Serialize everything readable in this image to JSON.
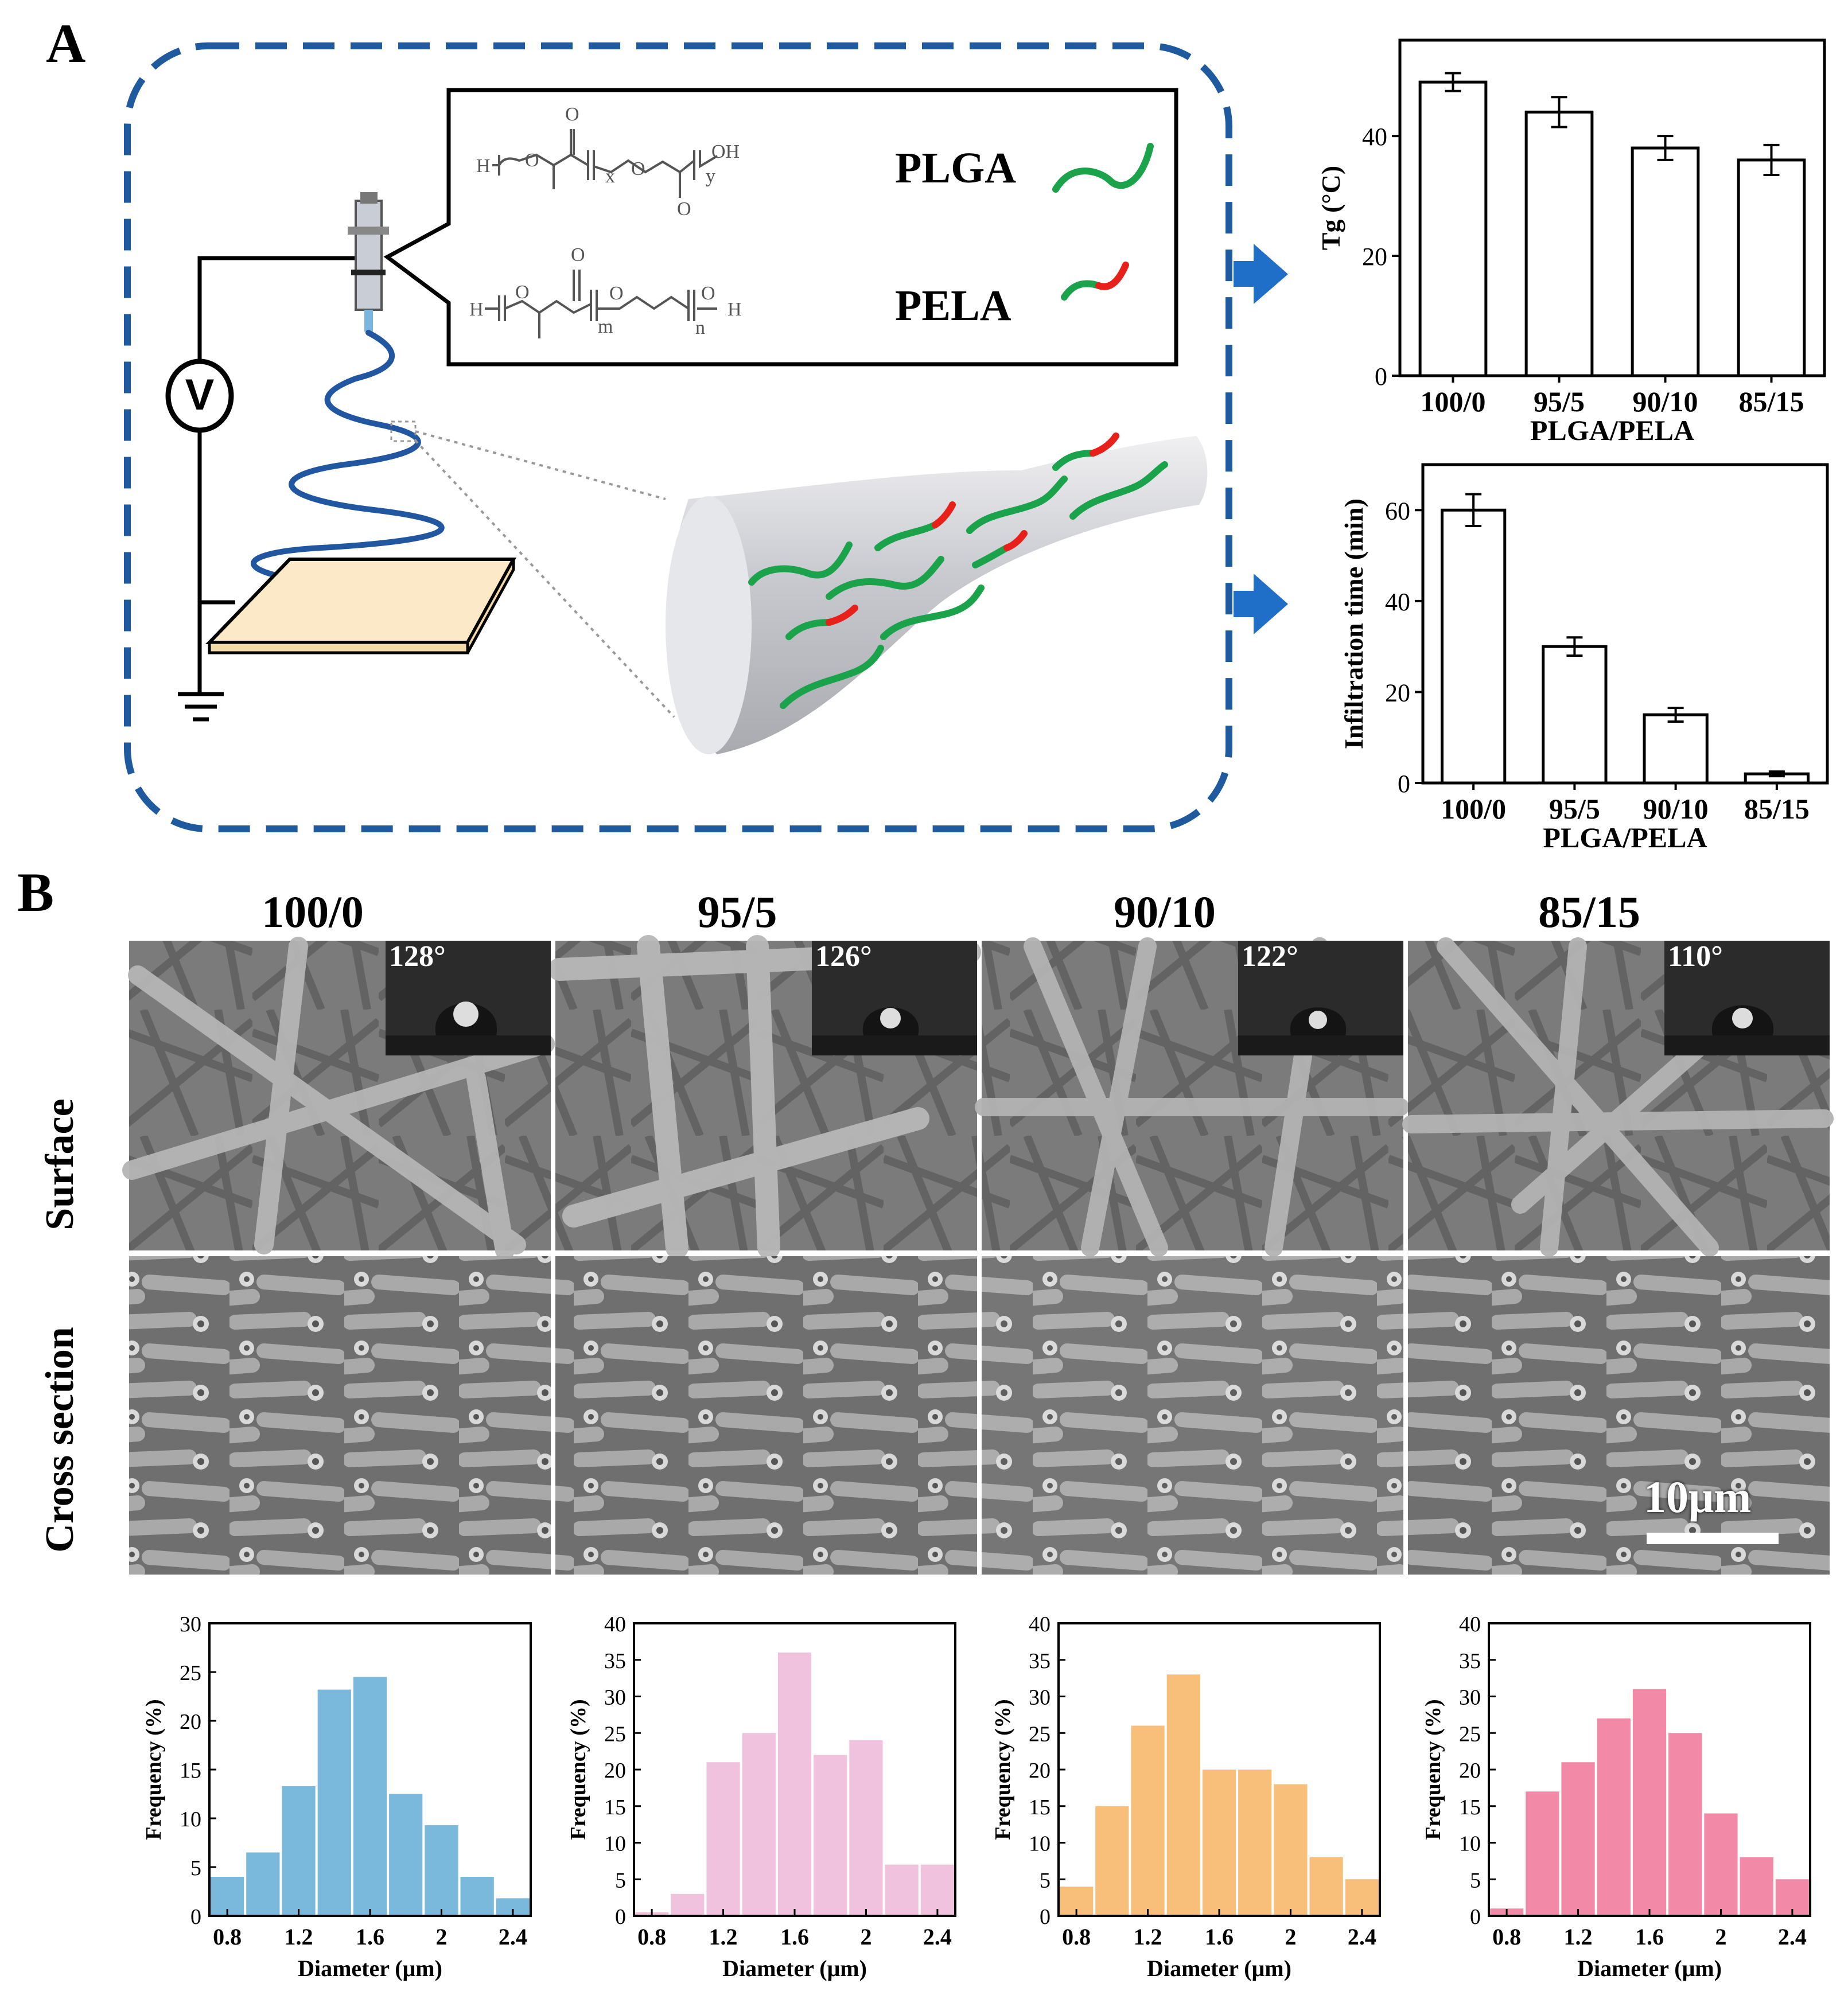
{
  "panelA": {
    "label": "A",
    "voltage_symbol": "V",
    "polymers": [
      {
        "name": "PLGA",
        "formula_subscripts": [
          "x",
          "y"
        ],
        "end_groups": [
          "H",
          "OH"
        ]
      },
      {
        "name": "PELA",
        "formula_subscripts": [
          "m",
          "n"
        ],
        "end_groups": [
          "H",
          "H"
        ]
      }
    ],
    "colors": {
      "dashed_border": "#1f5a9e",
      "arrow": "#1f6fc8",
      "plga_chain": "#1aa34a",
      "pela_segment": "#e8201a",
      "collector": "#fbe9c8"
    }
  },
  "panelB": {
    "label": "B",
    "columns": [
      "100/0",
      "95/5",
      "90/10",
      "85/15"
    ],
    "contact_angles": [
      "128°",
      "126°",
      "122°",
      "110°"
    ],
    "rows": [
      "Surface",
      "Cross section"
    ],
    "scale_bar": "10μm"
  },
  "chart_data": [
    {
      "type": "bar",
      "categories": [
        "100/0",
        "95/5",
        "90/10",
        "85/15"
      ],
      "values": [
        49,
        44,
        38,
        36
      ],
      "errors": [
        1.5,
        2.5,
        2,
        2.5
      ],
      "xlabel": "PLGA/PELA",
      "ylabel": "Tg (°C)",
      "ylim": [
        0,
        56
      ],
      "yticks": [
        0,
        20,
        40
      ]
    },
    {
      "type": "bar",
      "categories": [
        "100/0",
        "95/5",
        "90/10",
        "85/15"
      ],
      "values": [
        60,
        30,
        15,
        2
      ],
      "errors": [
        3.5,
        2,
        1.5,
        0.5
      ],
      "xlabel": "PLGA/PELA",
      "ylabel": "Infiltration time (min)",
      "ylim": [
        0,
        70
      ],
      "yticks": [
        0,
        20,
        40,
        60
      ]
    },
    {
      "type": "bar",
      "histogram": true,
      "name": "100/0",
      "color": "#7ab8dc",
      "bin_edges": [
        0.7,
        0.9,
        1.1,
        1.3,
        1.5,
        1.7,
        1.9,
        2.1,
        2.3,
        2.5
      ],
      "values": [
        4,
        6.5,
        13.3,
        23.2,
        24.5,
        12.5,
        9.3,
        4,
        1.8
      ],
      "xlim": [
        0.7,
        2.5
      ],
      "ylim": [
        0,
        30
      ],
      "xticks": [
        "0.8",
        "1.2",
        "1.6",
        "2",
        "2.4"
      ],
      "yticks": [
        "0",
        "5",
        "10",
        "15",
        "20",
        "25",
        "30"
      ],
      "xlabel": "Diameter (μm)",
      "ylabel": "Frequency (%)"
    },
    {
      "type": "bar",
      "histogram": true,
      "name": "95/5",
      "color": "#f0c2de",
      "bin_edges": [
        0.7,
        0.9,
        1.1,
        1.3,
        1.5,
        1.7,
        1.9,
        2.1,
        2.3,
        2.5
      ],
      "values": [
        0.5,
        3,
        21,
        25,
        36,
        22,
        24,
        7,
        7
      ],
      "xlim": [
        0.7,
        2.5
      ],
      "ylim": [
        0,
        40
      ],
      "xticks": [
        "0.8",
        "1.2",
        "1.6",
        "2",
        "2.4"
      ],
      "yticks": [
        "0",
        "5",
        "10",
        "15",
        "20",
        "25",
        "30",
        "35",
        "40"
      ],
      "xlabel": "Diameter (μm)",
      "ylabel": "Frequency (%)"
    },
    {
      "type": "bar",
      "histogram": true,
      "name": "90/10",
      "color": "#f8bf7a",
      "bin_edges": [
        0.7,
        0.9,
        1.1,
        1.3,
        1.5,
        1.7,
        1.9,
        2.1,
        2.3,
        2.5
      ],
      "values": [
        4,
        15,
        26,
        33,
        20,
        20,
        18,
        8,
        5
      ],
      "xlim": [
        0.7,
        2.5
      ],
      "ylim": [
        0,
        40
      ],
      "xticks": [
        "0.8",
        "1.2",
        "1.6",
        "2",
        "2.4"
      ],
      "yticks": [
        "0",
        "5",
        "10",
        "15",
        "20",
        "25",
        "30",
        "35",
        "40"
      ],
      "xlabel": "Diameter (μm)",
      "ylabel": "Frequency (%)"
    },
    {
      "type": "bar",
      "histogram": true,
      "name": "85/15",
      "color": "#f289a6",
      "bin_edges": [
        0.7,
        0.9,
        1.1,
        1.3,
        1.5,
        1.7,
        1.9,
        2.1,
        2.3,
        2.5
      ],
      "values": [
        1,
        17,
        21,
        27,
        31,
        25,
        14,
        8,
        5
      ],
      "xlim": [
        0.7,
        2.5
      ],
      "ylim": [
        0,
        40
      ],
      "xticks": [
        "0.8",
        "1.2",
        "1.6",
        "2",
        "2.4"
      ],
      "yticks": [
        "0",
        "5",
        "10",
        "15",
        "20",
        "25",
        "30",
        "35",
        "40"
      ],
      "xlabel": "Diameter (μm)",
      "ylabel": "Frequency (%)"
    }
  ]
}
